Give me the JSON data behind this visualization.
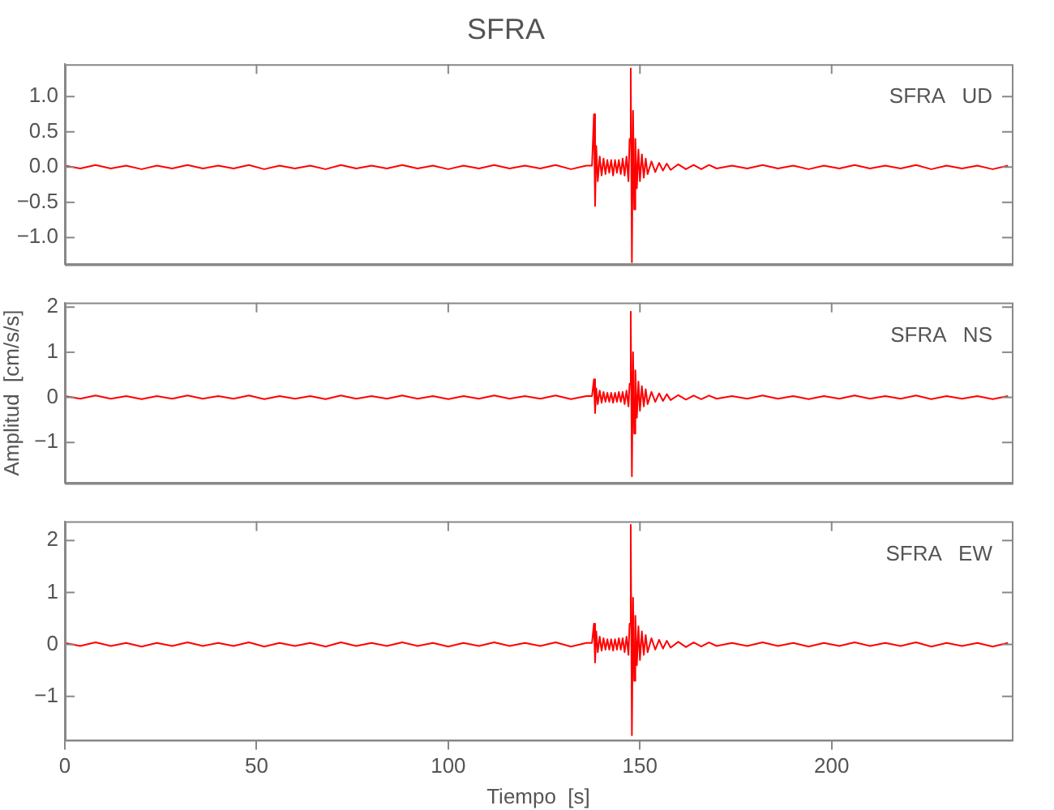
{
  "chart_data": [
    {
      "type": "line",
      "title": "SFRA",
      "annotations": [
        "SFRA   UD"
      ],
      "tick_labels": "y",
      "xlim": [
        0,
        247
      ],
      "xticks": [
        0,
        50,
        100,
        150,
        200
      ],
      "ylim": [
        -1.38,
        1.46
      ],
      "yticks": [
        {
          "value": -1,
          "label": "−1.0"
        },
        {
          "value": -0.5,
          "label": "−0.5"
        },
        {
          "value": 0,
          "label": "0.0"
        },
        {
          "value": 0.5,
          "label": "0.5"
        },
        {
          "value": 1,
          "label": "1.0"
        }
      ],
      "x": [
        0,
        4,
        8,
        12,
        16,
        20,
        24,
        28,
        32,
        36,
        40,
        44,
        48,
        52,
        56,
        60,
        64,
        68,
        72,
        76,
        80,
        84,
        88,
        92,
        96,
        100,
        104,
        108,
        112,
        116,
        120,
        124,
        128,
        132,
        136,
        137.5,
        138,
        138.3,
        138.6,
        139,
        139.5,
        140,
        140.5,
        141,
        141.5,
        142,
        142.5,
        143,
        143.5,
        144,
        144.5,
        145,
        145.5,
        146,
        146.5,
        147,
        147.3,
        147.6,
        147.9,
        148.2,
        148.5,
        148.8,
        149.2,
        149.6,
        150,
        150.5,
        151,
        151.5,
        152,
        153,
        154,
        155,
        156,
        157,
        158,
        160,
        162,
        164,
        166,
        168,
        170,
        174,
        178,
        182,
        186,
        190,
        194,
        198,
        202,
        206,
        210,
        214,
        218,
        222,
        226,
        230,
        234,
        238,
        242,
        246
      ],
      "series": [
        {
          "color": "#ff0000",
          "values": [
            0.02,
            -0.02,
            0.03,
            -0.02,
            0.02,
            -0.03,
            0.02,
            -0.02,
            0.03,
            -0.02,
            0.02,
            -0.02,
            0.03,
            -0.03,
            0.02,
            -0.02,
            0.02,
            -0.03,
            0.03,
            -0.02,
            0.02,
            -0.02,
            0.03,
            -0.02,
            0.02,
            -0.03,
            0.02,
            -0.02,
            0.03,
            -0.02,
            0.02,
            -0.02,
            0.03,
            -0.03,
            0.02,
            0.02,
            0.75,
            -0.55,
            0.3,
            -0.2,
            0.15,
            -0.12,
            0.12,
            -0.1,
            0.1,
            -0.08,
            0.1,
            -0.12,
            0.1,
            -0.08,
            0.1,
            -0.1,
            0.12,
            -0.12,
            0.15,
            -0.2,
            0.4,
            1.4,
            -1.35,
            0.8,
            -0.6,
            0.4,
            -0.3,
            0.25,
            -0.2,
            0.18,
            -0.15,
            0.12,
            -0.1,
            0.08,
            -0.07,
            0.06,
            -0.05,
            0.05,
            -0.04,
            0.04,
            -0.03,
            0.03,
            -0.03,
            0.03,
            -0.02,
            0.02,
            -0.02,
            0.03,
            -0.02,
            0.02,
            -0.03,
            0.02,
            -0.02,
            0.03,
            -0.02,
            0.02,
            -0.02,
            0.03,
            -0.03,
            0.02,
            -0.02,
            0.02,
            -0.03,
            0.02
          ]
        }
      ]
    },
    {
      "type": "line",
      "ylabel": "Amplitud  [cm/s/s]",
      "annotations": [
        "SFRA   NS"
      ],
      "tick_labels": "y",
      "xlim": [
        0,
        247
      ],
      "xticks": [
        0,
        50,
        100,
        150,
        200
      ],
      "ylim": [
        -1.9,
        2.1
      ],
      "yticks": [
        {
          "value": -1,
          "label": "−1"
        },
        0,
        1,
        2
      ],
      "x": [
        0,
        4,
        8,
        12,
        16,
        20,
        24,
        28,
        32,
        36,
        40,
        44,
        48,
        52,
        56,
        60,
        64,
        68,
        72,
        76,
        80,
        84,
        88,
        92,
        96,
        100,
        104,
        108,
        112,
        116,
        120,
        124,
        128,
        132,
        136,
        137.5,
        138,
        138.3,
        138.6,
        139,
        139.5,
        140,
        140.5,
        141,
        141.5,
        142,
        142.5,
        143,
        143.5,
        144,
        144.5,
        145,
        145.5,
        146,
        146.5,
        147,
        147.3,
        147.6,
        147.9,
        148.2,
        148.5,
        148.8,
        149.2,
        149.6,
        150,
        150.5,
        151,
        151.5,
        152,
        153,
        154,
        155,
        156,
        157,
        158,
        160,
        162,
        164,
        166,
        168,
        170,
        174,
        178,
        182,
        186,
        190,
        194,
        198,
        202,
        206,
        210,
        214,
        218,
        222,
        226,
        230,
        234,
        238,
        242,
        246
      ],
      "series": [
        {
          "color": "#ff0000",
          "values": [
            0.03,
            -0.03,
            0.04,
            -0.03,
            0.03,
            -0.04,
            0.03,
            -0.03,
            0.04,
            -0.03,
            0.03,
            -0.03,
            0.04,
            -0.04,
            0.03,
            -0.03,
            0.03,
            -0.04,
            0.04,
            -0.03,
            0.03,
            -0.03,
            0.04,
            -0.03,
            0.03,
            -0.04,
            0.03,
            -0.03,
            0.04,
            -0.03,
            0.03,
            -0.03,
            0.04,
            -0.04,
            0.03,
            0.03,
            0.4,
            -0.35,
            0.2,
            -0.15,
            0.15,
            -0.12,
            0.12,
            -0.1,
            0.1,
            -0.1,
            0.1,
            -0.12,
            0.1,
            -0.1,
            0.12,
            -0.1,
            0.12,
            -0.15,
            0.15,
            -0.2,
            0.3,
            1.9,
            -1.75,
            1.0,
            -0.8,
            0.6,
            -0.45,
            0.35,
            -0.3,
            0.25,
            -0.2,
            0.18,
            -0.15,
            0.12,
            -0.1,
            0.09,
            -0.08,
            0.07,
            -0.06,
            0.05,
            -0.05,
            0.04,
            -0.04,
            0.04,
            -0.03,
            0.03,
            -0.03,
            0.04,
            -0.03,
            0.03,
            -0.04,
            0.03,
            -0.03,
            0.04,
            -0.03,
            0.03,
            -0.03,
            0.04,
            -0.04,
            0.03,
            -0.03,
            0.03,
            -0.04,
            0.03
          ]
        }
      ]
    },
    {
      "type": "line",
      "xlabel": "Tiempo  [s]",
      "annotations": [
        "SFRA   EW"
      ],
      "xlim": [
        0,
        247
      ],
      "xticks": [
        0,
        50,
        100,
        150,
        200
      ],
      "ylim": [
        -1.84,
        2.37
      ],
      "yticks": [
        {
          "value": -1,
          "label": "−1"
        },
        0,
        1,
        2
      ],
      "x": [
        0,
        4,
        8,
        12,
        16,
        20,
        24,
        28,
        32,
        36,
        40,
        44,
        48,
        52,
        56,
        60,
        64,
        68,
        72,
        76,
        80,
        84,
        88,
        92,
        96,
        100,
        104,
        108,
        112,
        116,
        120,
        124,
        128,
        132,
        136,
        137.5,
        138,
        138.3,
        138.6,
        139,
        139.5,
        140,
        140.5,
        141,
        141.5,
        142,
        142.5,
        143,
        143.5,
        144,
        144.5,
        145,
        145.5,
        146,
        146.5,
        147,
        147.3,
        147.6,
        147.9,
        148.2,
        148.5,
        148.8,
        149.2,
        149.6,
        150,
        150.5,
        151,
        151.5,
        152,
        153,
        154,
        155,
        156,
        157,
        158,
        160,
        162,
        164,
        166,
        168,
        170,
        174,
        178,
        182,
        186,
        190,
        194,
        198,
        202,
        206,
        210,
        214,
        218,
        222,
        226,
        230,
        234,
        238,
        242,
        246
      ],
      "series": [
        {
          "color": "#ff0000",
          "values": [
            0.03,
            -0.03,
            0.04,
            -0.03,
            0.03,
            -0.04,
            0.03,
            -0.03,
            0.04,
            -0.03,
            0.03,
            -0.03,
            0.04,
            -0.04,
            0.03,
            -0.03,
            0.03,
            -0.04,
            0.04,
            -0.03,
            0.03,
            -0.03,
            0.04,
            -0.03,
            0.03,
            -0.04,
            0.03,
            -0.03,
            0.04,
            -0.03,
            0.03,
            -0.03,
            0.04,
            -0.04,
            0.03,
            0.03,
            0.4,
            -0.35,
            0.25,
            -0.15,
            0.15,
            -0.12,
            0.12,
            -0.1,
            0.1,
            -0.1,
            0.1,
            -0.12,
            0.1,
            -0.1,
            0.12,
            -0.1,
            0.12,
            -0.15,
            0.15,
            -0.2,
            0.4,
            2.3,
            -1.75,
            0.9,
            -0.7,
            0.55,
            -0.4,
            0.35,
            -0.3,
            0.25,
            -0.2,
            0.18,
            -0.15,
            0.12,
            -0.1,
            0.09,
            -0.08,
            0.07,
            -0.06,
            0.05,
            -0.05,
            0.04,
            -0.04,
            0.04,
            -0.03,
            0.03,
            -0.03,
            0.04,
            -0.03,
            0.03,
            -0.04,
            0.03,
            -0.03,
            0.04,
            -0.03,
            0.03,
            -0.03,
            0.04,
            -0.04,
            0.03,
            -0.03,
            0.03,
            -0.04,
            0.03
          ]
        }
      ]
    }
  ]
}
